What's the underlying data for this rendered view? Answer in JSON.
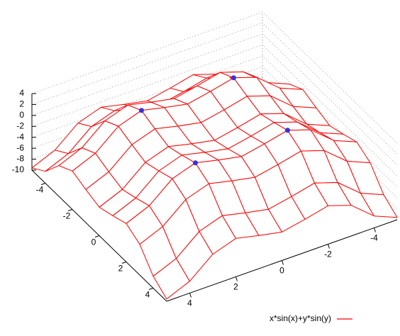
{
  "chart_data": {
    "type": "surface",
    "legend": "x*sin(x)+y*sin(y)",
    "color": "#ff0000",
    "x": [
      -5,
      -4,
      -3,
      -2,
      -1,
      0,
      1,
      2,
      3,
      4,
      5
    ],
    "y": [
      -5,
      -4,
      -3,
      -2,
      -1,
      0,
      1,
      2,
      3,
      4,
      5
    ],
    "z": [
      [
        -9.58,
        -7.82,
        -4.37,
        -2.97,
        -3.95,
        -4.79,
        -3.95,
        -2.97,
        -4.37,
        -7.82,
        -9.58
      ],
      [
        -7.82,
        -6.06,
        -2.61,
        -1.21,
        -2.19,
        -3.03,
        -2.19,
        -1.21,
        -2.61,
        -6.06,
        -7.82
      ],
      [
        -4.37,
        -2.61,
        0.84,
        2.24,
        1.26,
        0.42,
        1.26,
        2.24,
        0.84,
        -2.61,
        -4.37
      ],
      [
        -2.97,
        -1.21,
        2.24,
        3.64,
        2.66,
        1.82,
        2.66,
        3.64,
        2.24,
        -1.21,
        -2.97
      ],
      [
        -3.95,
        -2.19,
        1.26,
        2.66,
        1.68,
        0.84,
        1.68,
        2.66,
        1.26,
        -2.19,
        -3.95
      ],
      [
        -4.79,
        -3.03,
        0.42,
        1.82,
        0.84,
        0,
        0.84,
        1.82,
        0.42,
        -3.03,
        -4.79
      ],
      [
        -3.95,
        -2.19,
        1.26,
        2.66,
        1.68,
        0.84,
        1.68,
        2.66,
        1.26,
        -2.19,
        -3.95
      ],
      [
        -2.97,
        -1.21,
        2.24,
        3.64,
        2.66,
        1.82,
        2.66,
        3.64,
        2.24,
        -1.21,
        -2.97
      ],
      [
        -4.37,
        -2.61,
        0.84,
        2.24,
        1.26,
        0.42,
        1.26,
        2.24,
        0.84,
        -2.61,
        -4.37
      ],
      [
        -7.82,
        -6.06,
        -2.61,
        -1.21,
        -2.19,
        -3.03,
        -2.19,
        -1.21,
        -2.61,
        -6.06,
        -7.82
      ],
      [
        -9.58,
        -7.82,
        -4.37,
        -2.97,
        -3.95,
        -4.79,
        -3.95,
        -2.97,
        -4.37,
        -7.82,
        -9.58
      ]
    ],
    "points": {
      "color": "#3333dd",
      "x": [
        -2,
        2,
        -2,
        2
      ],
      "y": [
        -2,
        -2,
        2,
        2
      ],
      "z": [
        3.64,
        3.64,
        3.64,
        3.64
      ]
    },
    "xlim": [
      -5,
      5
    ],
    "ylim": [
      -5,
      5
    ],
    "zlim": [
      -10,
      4
    ],
    "xticks": [
      -4,
      -2,
      0,
      2,
      4
    ],
    "yticks": [
      -4,
      -2,
      0,
      2,
      4
    ],
    "zticks": [
      -10,
      -8,
      -6,
      -4,
      -2,
      0,
      2,
      4
    ],
    "grid": true
  }
}
